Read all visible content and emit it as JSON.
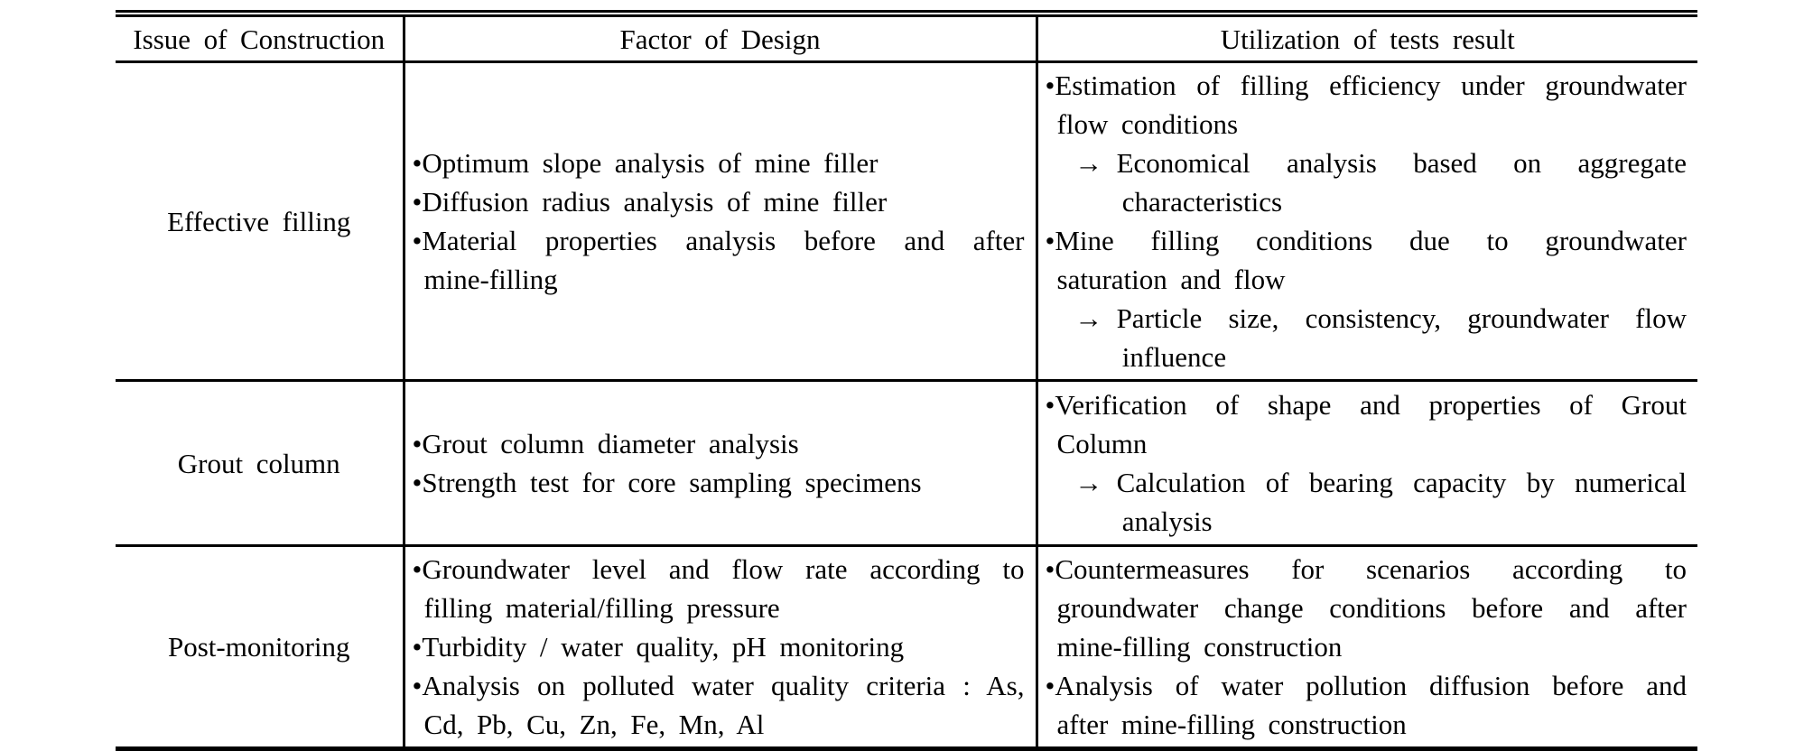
{
  "glyphs": {
    "bullet": "•",
    "arrow": "→"
  },
  "colors": {
    "border": "#000000",
    "text": "#000000",
    "background": "#ffffff"
  },
  "table": {
    "headers": {
      "issue": "Issue of Construction",
      "factor": "Factor of Design",
      "utilization": "Utilization of tests result"
    },
    "rows": [
      {
        "issue": "Effective filling",
        "factors": [
          "Optimum slope analysis of mine filler",
          "Diffusion radius analysis of mine filler",
          "Material properties analysis before and after mine-filling"
        ],
        "utilization": [
          {
            "text": "Estimation of filling efficiency under groundwater flow conditions",
            "sub": "Economical analysis based on aggregate characteristics"
          },
          {
            "text": "Mine filling conditions due to groundwater saturation and flow",
            "sub": "Particle size, consistency, groundwater flow influence"
          }
        ]
      },
      {
        "issue": "Grout column",
        "factors": [
          "Grout column diameter analysis",
          "Strength test for core sampling specimens"
        ],
        "utilization": [
          {
            "text": "Verification of shape and properties of Grout Column",
            "sub": "Calculation of bearing capacity by numerical analysis"
          }
        ]
      },
      {
        "issue": "Post-monitoring",
        "factors": [
          "Groundwater level and flow rate according to filling material/filling pressure",
          "Turbidity / water quality, pH monitoring",
          "Analysis on polluted water quality criteria : As, Cd, Pb, Cu, Zn, Fe, Mn, Al"
        ],
        "utilization": [
          {
            "text": "Countermeasures for scenarios according to groundwater change conditions before and after mine-filling construction"
          },
          {
            "text": "Analysis of water pollution diffusion before and after mine-filling construction"
          }
        ]
      }
    ]
  }
}
